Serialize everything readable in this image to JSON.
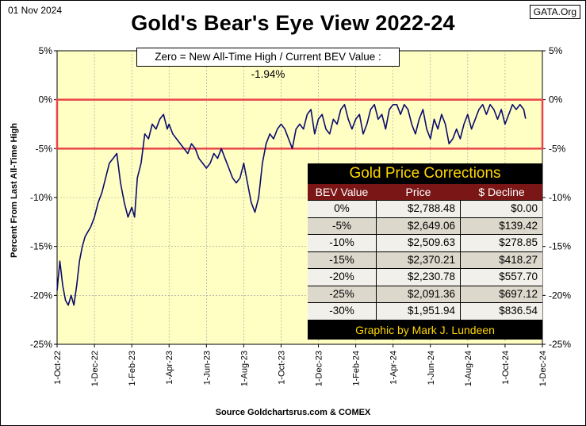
{
  "header": {
    "date": "01 Nov 2024",
    "source_tag": "GATA.Org",
    "title": "Gold's Bear's Eye View 2022-24"
  },
  "footer": {
    "source": "Source Goldchartsrus.com  & COMEX"
  },
  "colors": {
    "plot_bg": "#ffffc4",
    "line": "#0b0b6e",
    "highlight": "#e8454a",
    "table_header_bg": "#7a1616",
    "table_title": "#ffd700"
  },
  "chart_data": {
    "type": "line",
    "title": "Gold's Bear's Eye View 2022-24",
    "annotation": "Zero = New All-Time High / Current  BEV Value : -1.94%",
    "ylabel": "Percent   From  Last  All-Time  High",
    "xlabel": "",
    "ylim": [
      -25,
      5
    ],
    "yticks": [
      5,
      0,
      -5,
      -10,
      -15,
      -20,
      -25
    ],
    "ytick_labels": [
      "5%",
      "0%",
      "-5%",
      "-10%",
      "-15%",
      "-20%",
      "-25%"
    ],
    "xlim": [
      0,
      26
    ],
    "xtick_values": [
      0,
      2,
      4,
      6,
      8,
      10,
      12,
      14,
      16,
      18,
      20,
      22,
      24,
      26
    ],
    "xtick_labels": [
      "1-Oct-22",
      "1-Dec-22",
      "1-Feb-23",
      "1-Apr-23",
      "1-Jun-23",
      "1-Aug-23",
      "1-Oct-23",
      "1-Dec-23",
      "1-Feb-24",
      "1-Apr-24",
      "1-Jun-24",
      "1-Aug-24",
      "1-Oct-24",
      "1-Dec-24"
    ],
    "highlight_band": [
      0,
      -5
    ],
    "current_value": -1.94,
    "series": [
      {
        "name": "BEV",
        "x": [
          0.0,
          0.15,
          0.3,
          0.45,
          0.6,
          0.75,
          0.9,
          1.05,
          1.2,
          1.35,
          1.5,
          1.65,
          1.8,
          2.0,
          2.2,
          2.4,
          2.6,
          2.8,
          3.0,
          3.2,
          3.4,
          3.6,
          3.8,
          4.0,
          4.15,
          4.3,
          4.5,
          4.7,
          4.9,
          5.1,
          5.3,
          5.5,
          5.7,
          5.9,
          6.0,
          6.2,
          6.4,
          6.6,
          6.8,
          7.0,
          7.2,
          7.4,
          7.6,
          7.8,
          8.0,
          8.2,
          8.4,
          8.6,
          8.8,
          9.0,
          9.2,
          9.4,
          9.6,
          9.8,
          10.0,
          10.2,
          10.4,
          10.6,
          10.8,
          11.0,
          11.2,
          11.4,
          11.6,
          11.8,
          12.0,
          12.2,
          12.4,
          12.6,
          12.8,
          13.0,
          13.2,
          13.4,
          13.6,
          13.8,
          14.0,
          14.2,
          14.4,
          14.6,
          14.8,
          15.0,
          15.2,
          15.4,
          15.6,
          15.8,
          16.0,
          16.2,
          16.4,
          16.6,
          16.8,
          17.0,
          17.2,
          17.4,
          17.6,
          17.8,
          18.0,
          18.2,
          18.4,
          18.6,
          18.8,
          19.0,
          19.2,
          19.4,
          19.6,
          19.8,
          20.0,
          20.2,
          20.4,
          20.6,
          20.8,
          21.0,
          21.2,
          21.4,
          21.6,
          21.8,
          22.0,
          22.2,
          22.4,
          22.6,
          22.8,
          23.0,
          23.2,
          23.4,
          23.6,
          23.8,
          24.0,
          24.2,
          24.4,
          24.6,
          24.8,
          25.0,
          25.1
        ],
        "values": [
          -19.5,
          -16.5,
          -19.0,
          -20.5,
          -21.0,
          -20.0,
          -21.0,
          -19.0,
          -16.5,
          -15.0,
          -14.0,
          -13.5,
          -13.0,
          -12.0,
          -10.5,
          -9.5,
          -8.0,
          -6.5,
          -6.0,
          -5.5,
          -8.5,
          -10.5,
          -12.0,
          -11.0,
          -12.0,
          -8.0,
          -6.5,
          -3.5,
          -4.0,
          -2.5,
          -3.0,
          -2.0,
          -1.5,
          -3.0,
          -2.5,
          -3.5,
          -4.0,
          -4.5,
          -5.0,
          -5.5,
          -4.5,
          -5.0,
          -6.0,
          -6.5,
          -7.0,
          -6.5,
          -5.5,
          -6.0,
          -5.0,
          -6.0,
          -7.0,
          -8.0,
          -8.5,
          -8.0,
          -6.5,
          -8.5,
          -10.5,
          -11.5,
          -10.0,
          -6.5,
          -4.5,
          -3.5,
          -4.0,
          -3.0,
          -2.5,
          -3.0,
          -4.0,
          -5.0,
          -3.0,
          -2.5,
          -3.0,
          -1.5,
          -1.0,
          -3.5,
          -2.0,
          -1.5,
          -3.0,
          -3.5,
          -2.0,
          -2.5,
          -1.0,
          -0.5,
          -2.0,
          -3.0,
          -2.0,
          -1.5,
          -3.5,
          -2.5,
          -1.0,
          -0.5,
          -2.0,
          -1.5,
          -3.0,
          -1.0,
          -0.5,
          -0.5,
          -1.5,
          -0.5,
          -1.0,
          -2.5,
          -3.5,
          -2.0,
          -1.0,
          -3.0,
          -4.0,
          -2.0,
          -3.0,
          -1.5,
          -2.5,
          -4.5,
          -4.0,
          -3.0,
          -4.0,
          -2.5,
          -1.5,
          -3.0,
          -2.0,
          -1.0,
          -0.5,
          -1.5,
          -0.5,
          -1.0,
          -2.0,
          -1.0,
          -2.5,
          -1.5,
          -0.5,
          -1.0,
          -0.5,
          -1.0,
          -1.94
        ]
      }
    ]
  },
  "corrections_table": {
    "title": "Gold Price Corrections",
    "columns": [
      "BEV Value",
      "Price",
      "$ Decline"
    ],
    "rows": [
      [
        "0%",
        "$2,788.48",
        "$0.00"
      ],
      [
        "-5%",
        "$2,649.06",
        "$139.42"
      ],
      [
        "-10%",
        "$2,509.63",
        "$278.85"
      ],
      [
        "-15%",
        "$2,370.21",
        "$418.27"
      ],
      [
        "-20%",
        "$2,230.78",
        "$557.70"
      ],
      [
        "-25%",
        "$2,091.36",
        "$697.12"
      ],
      [
        "-30%",
        "$1,951.94",
        "$836.54"
      ]
    ],
    "credit": "Graphic by Mark J. Lundeen"
  }
}
